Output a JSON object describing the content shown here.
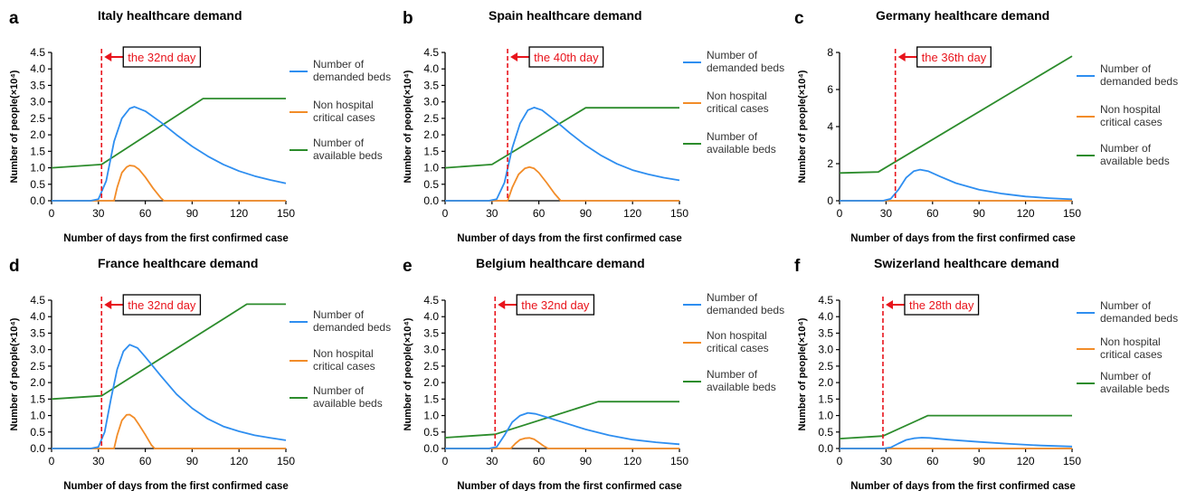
{
  "chart_data": [
    {
      "type": "line",
      "panel": "a",
      "title": "Italy healthcare demand",
      "xlabel": "Number of days from the first confirmed case",
      "ylabel": "Number of people(×10⁴)",
      "xlim": [
        0,
        150
      ],
      "ylim": [
        0,
        4.5
      ],
      "xticks": [
        0,
        30,
        60,
        90,
        120,
        150
      ],
      "yticks": [
        0.0,
        0.5,
        1.0,
        1.5,
        2.0,
        2.5,
        3.0,
        3.5,
        4.0,
        4.5
      ],
      "ytick_labels": [
        "0.0",
        "0.5",
        "1.0",
        "1.5",
        "2.0",
        "2.5",
        "3.0",
        "3.5",
        "4.0",
        "4.5"
      ],
      "marker_day": 32,
      "annotation": "the 32nd day",
      "series": [
        {
          "name": "Number of demanded beds",
          "color": "#2e8ef0",
          "x": [
            0,
            25,
            30,
            35,
            40,
            45,
            50,
            53,
            60,
            70,
            80,
            90,
            100,
            110,
            120,
            130,
            140,
            150
          ],
          "y": [
            0,
            0,
            0.05,
            0.6,
            1.8,
            2.5,
            2.8,
            2.85,
            2.72,
            2.38,
            2.0,
            1.65,
            1.35,
            1.1,
            0.9,
            0.75,
            0.63,
            0.53
          ]
        },
        {
          "name": "Non hospital critical cases",
          "color": "#f28c28",
          "x": [
            0,
            40,
            42,
            45,
            48,
            50,
            53,
            56,
            60,
            65,
            70,
            72,
            150
          ],
          "y": [
            0,
            0,
            0.4,
            0.85,
            1.02,
            1.07,
            1.05,
            0.95,
            0.72,
            0.38,
            0.08,
            0,
            0
          ]
        },
        {
          "name": "Number of available beds",
          "color": "#2c8c2c",
          "x": [
            0,
            32,
            97,
            150
          ],
          "y": [
            1.0,
            1.1,
            3.1,
            3.1
          ]
        }
      ]
    },
    {
      "type": "line",
      "panel": "b",
      "title": "Spain healthcare demand",
      "xlabel": "Number of days from the first confirmed case",
      "ylabel": "Number of people(×10⁴)",
      "xlim": [
        0,
        150
      ],
      "ylim": [
        0,
        4.5
      ],
      "xticks": [
        0,
        30,
        60,
        90,
        120,
        150
      ],
      "yticks": [
        0.0,
        0.5,
        1.0,
        1.5,
        2.0,
        2.5,
        3.0,
        3.5,
        4.0,
        4.5
      ],
      "ytick_labels": [
        "0.0",
        "0.5",
        "1.0",
        "1.5",
        "2.0",
        "2.5",
        "3.0",
        "3.5",
        "4.0",
        "4.5"
      ],
      "marker_day": 40,
      "annotation": "the 40th day",
      "series": [
        {
          "name": "Number of demanded beds",
          "color": "#2e8ef0",
          "x": [
            0,
            28,
            33,
            38,
            43,
            48,
            53,
            57,
            62,
            70,
            80,
            90,
            100,
            110,
            120,
            130,
            140,
            150
          ],
          "y": [
            0,
            0,
            0.05,
            0.55,
            1.6,
            2.35,
            2.75,
            2.83,
            2.75,
            2.45,
            2.05,
            1.68,
            1.37,
            1.12,
            0.93,
            0.8,
            0.7,
            0.62
          ]
        },
        {
          "name": "Non hospital critical cases",
          "color": "#f28c28",
          "x": [
            0,
            40,
            43,
            47,
            51,
            54,
            57,
            60,
            65,
            70,
            74,
            150
          ],
          "y": [
            0,
            0,
            0.4,
            0.8,
            0.98,
            1.02,
            0.98,
            0.85,
            0.55,
            0.22,
            0,
            0
          ]
        },
        {
          "name": "Number of available beds",
          "color": "#2c8c2c",
          "x": [
            0,
            30,
            90,
            150
          ],
          "y": [
            1.0,
            1.1,
            2.82,
            2.82
          ]
        }
      ]
    },
    {
      "type": "line",
      "panel": "c",
      "title": "Germany healthcare demand",
      "xlabel": "Number of days from the first confirmed case",
      "ylabel": "Number of people(×10⁴)",
      "xlim": [
        0,
        150
      ],
      "ylim": [
        0,
        8
      ],
      "xticks": [
        0,
        30,
        60,
        90,
        120,
        150
      ],
      "yticks": [
        0,
        2,
        4,
        6,
        8
      ],
      "ytick_labels": [
        "0",
        "2",
        "4",
        "6",
        "8"
      ],
      "marker_day": 36,
      "annotation": "the 36th day",
      "series": [
        {
          "name": "Number of demanded beds",
          "color": "#2e8ef0",
          "x": [
            0,
            28,
            33,
            38,
            43,
            48,
            52,
            57,
            65,
            75,
            90,
            105,
            120,
            135,
            150
          ],
          "y": [
            0,
            0,
            0.1,
            0.6,
            1.25,
            1.6,
            1.68,
            1.6,
            1.3,
            0.95,
            0.6,
            0.38,
            0.23,
            0.14,
            0.08
          ]
        },
        {
          "name": "Non hospital critical cases",
          "color": "#f28c28",
          "x": [
            0,
            150
          ],
          "y": [
            0,
            0
          ]
        },
        {
          "name": "Number of available beds",
          "color": "#2c8c2c",
          "x": [
            0,
            25,
            150
          ],
          "y": [
            1.5,
            1.55,
            7.8
          ]
        }
      ]
    },
    {
      "type": "line",
      "panel": "d",
      "title": "France healthcare demand",
      "xlabel": "Number of days from the first confirmed case",
      "ylabel": "Number of people(×10⁴)",
      "xlim": [
        0,
        150
      ],
      "ylim": [
        0,
        4.5
      ],
      "xticks": [
        0,
        30,
        60,
        90,
        120,
        150
      ],
      "yticks": [
        0.0,
        0.5,
        1.0,
        1.5,
        2.0,
        2.5,
        3.0,
        3.5,
        4.0,
        4.5
      ],
      "ytick_labels": [
        "0.0",
        "0.5",
        "1.0",
        "1.5",
        "2.0",
        "2.5",
        "3.0",
        "3.5",
        "4.0",
        "4.5"
      ],
      "marker_day": 32,
      "annotation": "the 32nd day",
      "series": [
        {
          "name": "Number of demanded beds",
          "color": "#2e8ef0",
          "x": [
            0,
            25,
            30,
            34,
            38,
            42,
            46,
            50,
            55,
            60,
            70,
            80,
            90,
            100,
            110,
            120,
            130,
            140,
            150
          ],
          "y": [
            0,
            0,
            0.05,
            0.5,
            1.5,
            2.4,
            2.95,
            3.15,
            3.05,
            2.78,
            2.2,
            1.65,
            1.22,
            0.9,
            0.67,
            0.52,
            0.4,
            0.32,
            0.25
          ]
        },
        {
          "name": "Non hospital critical cases",
          "color": "#f28c28",
          "x": [
            0,
            40,
            42,
            45,
            48,
            50,
            53,
            56,
            60,
            64,
            66,
            150
          ],
          "y": [
            0,
            0,
            0.4,
            0.85,
            1.02,
            1.03,
            0.93,
            0.72,
            0.42,
            0.1,
            0,
            0
          ]
        },
        {
          "name": "Number of available beds",
          "color": "#2c8c2c",
          "x": [
            0,
            32,
            125,
            150
          ],
          "y": [
            1.5,
            1.6,
            4.38,
            4.38
          ]
        }
      ]
    },
    {
      "type": "line",
      "panel": "e",
      "title": "Belgium healthcare demand",
      "xlabel": "Number of days from the first confirmed case",
      "ylabel": "Number of people(×10⁴)",
      "xlim": [
        0,
        150
      ],
      "ylim": [
        0,
        4.5
      ],
      "xticks": [
        0,
        30,
        60,
        90,
        120,
        150
      ],
      "yticks": [
        0.0,
        0.5,
        1.0,
        1.5,
        2.0,
        2.5,
        3.0,
        3.5,
        4.0,
        4.5
      ],
      "ytick_labels": [
        "0.0",
        "0.5",
        "1.0",
        "1.5",
        "2.0",
        "2.5",
        "3.0",
        "3.5",
        "4.0",
        "4.5"
      ],
      "marker_day": 32,
      "annotation": "the 32nd day",
      "series": [
        {
          "name": "Number of demanded beds",
          "color": "#2e8ef0",
          "x": [
            0,
            28,
            33,
            38,
            43,
            48,
            53,
            58,
            65,
            75,
            90,
            105,
            120,
            135,
            150
          ],
          "y": [
            0,
            0,
            0.05,
            0.4,
            0.8,
            1.0,
            1.08,
            1.05,
            0.95,
            0.8,
            0.58,
            0.4,
            0.27,
            0.19,
            0.13
          ]
        },
        {
          "name": "Non hospital critical cases",
          "color": "#f28c28",
          "x": [
            0,
            42,
            45,
            48,
            51,
            54,
            57,
            60,
            63,
            66,
            150
          ],
          "y": [
            0,
            0,
            0.15,
            0.27,
            0.31,
            0.32,
            0.28,
            0.18,
            0.08,
            0,
            0
          ]
        },
        {
          "name": "Number of available beds",
          "color": "#2c8c2c",
          "x": [
            0,
            32,
            98,
            150
          ],
          "y": [
            0.33,
            0.43,
            1.42,
            1.42
          ]
        }
      ]
    },
    {
      "type": "line",
      "panel": "f",
      "title": "Swizerland healthcare demand",
      "xlabel": "Number of days from the first confirmed case",
      "ylabel": "Number of people(×10⁴)",
      "xlim": [
        0,
        150
      ],
      "ylim": [
        0,
        4.5
      ],
      "xticks": [
        0,
        30,
        60,
        90,
        120,
        150
      ],
      "yticks": [
        0.0,
        0.5,
        1.0,
        1.5,
        2.0,
        2.5,
        3.0,
        3.5,
        4.0,
        4.5
      ],
      "ytick_labels": [
        "0.0",
        "0.5",
        "1.0",
        "1.5",
        "2.0",
        "2.5",
        "3.0",
        "3.5",
        "4.0",
        "4.5"
      ],
      "marker_day": 28,
      "annotation": "the 28th day",
      "series": [
        {
          "name": "Number of demanded beds",
          "color": "#2e8ef0",
          "x": [
            0,
            28,
            33,
            38,
            43,
            48,
            53,
            58,
            70,
            90,
            110,
            130,
            150
          ],
          "y": [
            0,
            0,
            0.03,
            0.15,
            0.26,
            0.31,
            0.33,
            0.32,
            0.27,
            0.2,
            0.14,
            0.09,
            0.06
          ]
        },
        {
          "name": "Non hospital critical cases",
          "color": "#f28c28",
          "x": [
            0,
            150
          ],
          "y": [
            0,
            0
          ]
        },
        {
          "name": "Number of available beds",
          "color": "#2c8c2c",
          "x": [
            0,
            28,
            57,
            150
          ],
          "y": [
            0.3,
            0.38,
            1.0,
            1.0
          ]
        }
      ]
    }
  ]
}
